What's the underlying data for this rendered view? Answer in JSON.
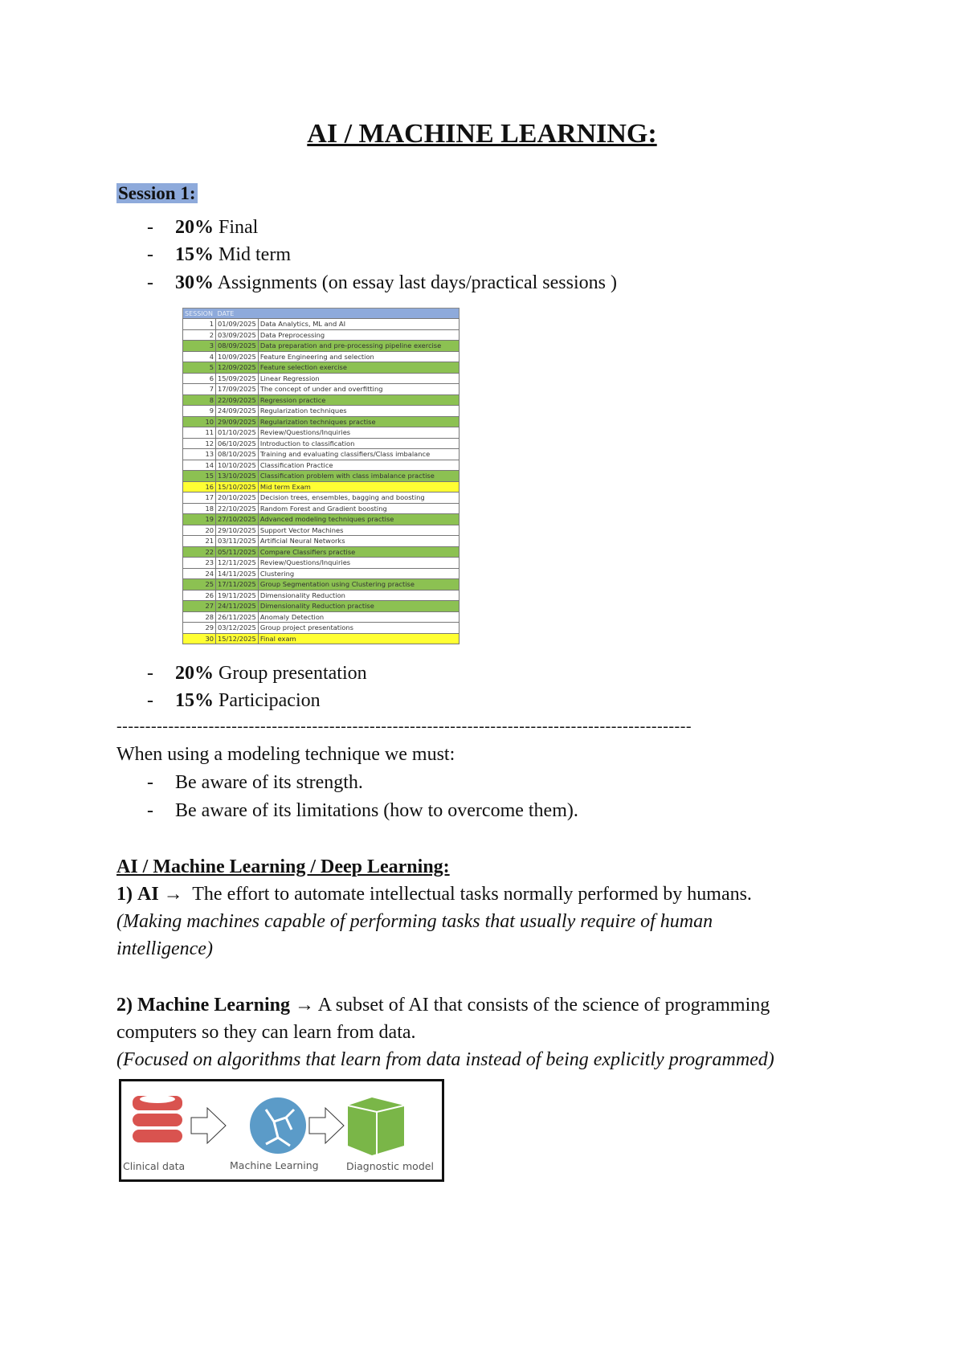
{
  "title": "AI / MACHINE LEARNING:",
  "session_heading": "Session 1:",
  "grading": [
    {
      "pct": "20%",
      "label": "Final"
    },
    {
      "pct": "15%",
      "label": "Mid term"
    },
    {
      "pct": "30%",
      "label": "Assignments (on essay last days/practical sessions )"
    },
    {
      "pct": "20%",
      "label": "Group presentation"
    },
    {
      "pct": "15%",
      "label": "Participacion"
    }
  ],
  "bullet_dash": "-",
  "schedule": {
    "headers": [
      "SESSION",
      "DATE",
      ""
    ],
    "row_colors": {
      "green": "#8cc152",
      "yellow": "#ffff33",
      "header": "#8eaadb"
    },
    "rows": [
      {
        "n": "1",
        "date": "01/09/2025",
        "topic": "Data Analytics, ML and AI",
        "color": ""
      },
      {
        "n": "2",
        "date": "03/09/2025",
        "topic": "Data Preprocessing",
        "color": ""
      },
      {
        "n": "3",
        "date": "08/09/2025",
        "topic": "Data preparation and pre-processing pipeline exercise",
        "color": "g"
      },
      {
        "n": "4",
        "date": "10/09/2025",
        "topic": "Feature Engineering and selection",
        "color": ""
      },
      {
        "n": "5",
        "date": "12/09/2025",
        "topic": "Feature selection exercise",
        "color": "g"
      },
      {
        "n": "6",
        "date": "15/09/2025",
        "topic": "Linear Regression",
        "color": ""
      },
      {
        "n": "7",
        "date": "17/09/2025",
        "topic": "The concept of under and overfitting",
        "color": ""
      },
      {
        "n": "8",
        "date": "22/09/2025",
        "topic": "Regression practice",
        "color": "g"
      },
      {
        "n": "9",
        "date": "24/09/2025",
        "topic": "Regularization techniques",
        "color": ""
      },
      {
        "n": "10",
        "date": "29/09/2025",
        "topic": "Regularization techniques practise",
        "color": "g"
      },
      {
        "n": "11",
        "date": "01/10/2025",
        "topic": "Review/Questions/Inquiries",
        "color": ""
      },
      {
        "n": "12",
        "date": "06/10/2025",
        "topic": "Introduction to classification",
        "color": ""
      },
      {
        "n": "13",
        "date": "08/10/2025",
        "topic": "Training and evaluating classifiers/Class imbalance",
        "color": ""
      },
      {
        "n": "14",
        "date": "10/10/2025",
        "topic": "Classification Practice",
        "color": ""
      },
      {
        "n": "15",
        "date": "13/10/2025",
        "topic": "Classification problem with class imbalance practise",
        "color": "g"
      },
      {
        "n": "16",
        "date": "15/10/2025",
        "topic": "Mid term Exam",
        "color": "y"
      },
      {
        "n": "17",
        "date": "20/10/2025",
        "topic": "Decision trees, ensembles, bagging and boosting",
        "color": ""
      },
      {
        "n": "18",
        "date": "22/10/2025",
        "topic": "Random Forest and Gradient boosting",
        "color": ""
      },
      {
        "n": "19",
        "date": "27/10/2025",
        "topic": "Advanced modeling techniques practise",
        "color": "g"
      },
      {
        "n": "20",
        "date": "29/10/2025",
        "topic": "Support Vector Machines",
        "color": ""
      },
      {
        "n": "21",
        "date": "03/11/2025",
        "topic": "Artificial Neural Networks",
        "color": ""
      },
      {
        "n": "22",
        "date": "05/11/2025",
        "topic": "Compare Classifiers practise",
        "color": "g"
      },
      {
        "n": "23",
        "date": "12/11/2025",
        "topic": "Review/Questions/Inquiries",
        "color": ""
      },
      {
        "n": "24",
        "date": "14/11/2025",
        "topic": "Clustering",
        "color": ""
      },
      {
        "n": "25",
        "date": "17/11/2025",
        "topic": "Group Segmentation using Clustering practise",
        "color": "g"
      },
      {
        "n": "26",
        "date": "19/11/2025",
        "topic": "Dimensionality Reduction",
        "color": ""
      },
      {
        "n": "27",
        "date": "24/11/2025",
        "topic": "Dimensionality Reduction practise",
        "color": "g"
      },
      {
        "n": "28",
        "date": "26/11/2025",
        "topic": "Anomaly Detection",
        "color": ""
      },
      {
        "n": "29",
        "date": "03/12/2025",
        "topic": "Group project presentations",
        "color": ""
      },
      {
        "n": "30",
        "date": "15/12/2025",
        "topic": "Final exam",
        "color": "y"
      }
    ]
  },
  "separator": "----------------------------------------------------------------------------------------------------",
  "modeling": {
    "intro": "When using a modeling technique we must:",
    "items": [
      "Be aware of its strength.",
      "Be aware of its limitations (how to overcome them)."
    ]
  },
  "ai_section": {
    "heading": "AI / Machine Learning / Deep Learning:",
    "ai_num": "1)",
    "ai_term": "AI",
    "arrow": "→",
    "ai_def": "The effort to automate  intellectual tasks normally performed by humans.",
    "ai_note_1": "(Making machines capable of performing tasks that usually require of human",
    "ai_note_2": "intelligence)",
    "ml_num": "2)",
    "ml_term": "Machine Learning",
    "ml_def_1": "A subset of AI that consists of the science of programming",
    "ml_def_2": "computers so they can learn from data.",
    "ml_note": "(Focused on algorithms that learn from data instead of being explicitly programmed)"
  },
  "figure": {
    "labels": [
      "Clinical data",
      "Machine Learning",
      "Diagnostic model"
    ],
    "icons": [
      "database-icon",
      "neural-network-icon",
      "cube-icon"
    ],
    "colors": [
      "#d9534f",
      "#5b9bc8",
      "#7ab648"
    ]
  }
}
